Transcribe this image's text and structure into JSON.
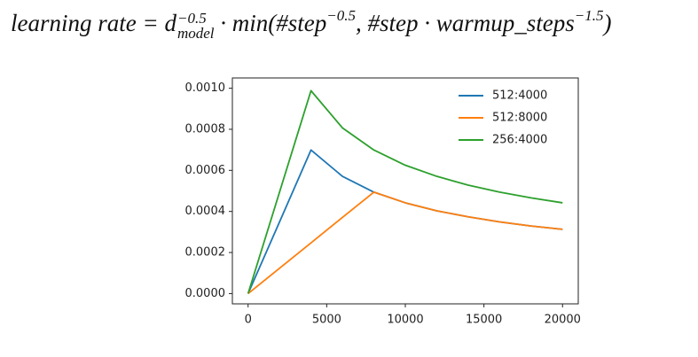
{
  "chart_data": {
    "type": "line",
    "title_parts": [
      {
        "text": "learning rate = d"
      },
      {
        "sup": "−0.5",
        "sub": "model"
      },
      {
        "text": " · min(#step"
      },
      {
        "sup": "−0.5"
      },
      {
        "text": ", #step · warmup_steps"
      },
      {
        "sup": "−1.5"
      },
      {
        "text": ")"
      }
    ],
    "x": [
      0,
      2000,
      4000,
      6000,
      8000,
      10000,
      12000,
      14000,
      16000,
      18000,
      20000
    ],
    "series": [
      {
        "name": "512:4000",
        "color": "#1f77b4",
        "values": [
          0,
          0.000349,
          0.000699,
          0.000571,
          0.000494,
          0.000442,
          0.000403,
          0.000374,
          0.000349,
          0.000329,
          0.000313
        ]
      },
      {
        "name": "512:8000",
        "color": "#ff7f0e",
        "values": [
          0,
          0.0001235,
          0.000247,
          0.000371,
          0.000494,
          0.000442,
          0.000403,
          0.000374,
          0.000349,
          0.000329,
          0.000313
        ]
      },
      {
        "name": "256:4000",
        "color": "#2ca02c",
        "values": [
          0,
          0.000494,
          0.000988,
          0.000807,
          0.000699,
          0.000625,
          0.000571,
          0.000528,
          0.000494,
          0.000466,
          0.000442
        ]
      }
    ],
    "xlim": [
      -1000,
      21000
    ],
    "ylim": [
      -5e-05,
      0.00105
    ],
    "xticks": [
      0,
      5000,
      10000,
      15000,
      20000
    ],
    "yticks": [
      {
        "value": 0,
        "label": "0.0000"
      },
      {
        "value": 0.0002,
        "label": "0.0002"
      },
      {
        "value": 0.0004,
        "label": "0.0004"
      },
      {
        "value": 0.0006,
        "label": "0.0006"
      },
      {
        "value": 0.0008,
        "label": "0.0008"
      },
      {
        "value": 0.001,
        "label": "0.0010"
      }
    ],
    "grid": false,
    "legend": "upper right"
  }
}
